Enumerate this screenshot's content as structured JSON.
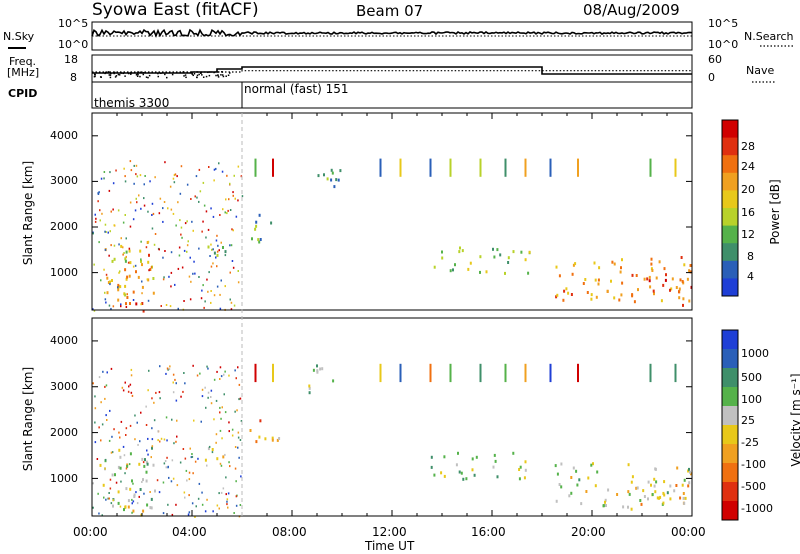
{
  "header": {
    "station": "Syowa East (fitACF)",
    "beam": "Beam 07",
    "date": "08/Aug/2009"
  },
  "noise_panel": {
    "left_label": "N.Sky",
    "right_label": "N.Search",
    "ticks_left": [
      "10^5",
      "10^0"
    ],
    "ticks_right": [
      "10^5",
      "10^0"
    ]
  },
  "freq_panel": {
    "left_label_line1": "Freq.",
    "left_label_line2": "[MHz]",
    "left_ticks": [
      "18",
      "8"
    ],
    "right_label": "Nave",
    "right_ticks": [
      "60",
      "0"
    ]
  },
  "cpid_panel": {
    "label": "CPID",
    "segments": [
      {
        "name": "themis 3300",
        "start_hour": 0
      },
      {
        "name": "normal (fast) 151",
        "start_hour": 6
      }
    ]
  },
  "power_panel": {
    "ylabel": "Slant Range [km]",
    "yticks": [
      "4000",
      "3000",
      "2000",
      "1000"
    ],
    "colorbar_label": "Power [dB]",
    "colorbar_ticks": [
      "28",
      "24",
      "20",
      "16",
      "12",
      "8",
      "4"
    ],
    "colors": [
      "#1f3fd6",
      "#2a5fb8",
      "#3f8f6a",
      "#55b24a",
      "#b8d22a",
      "#e8c81a",
      "#f0a020",
      "#f07010",
      "#e03010",
      "#d00000"
    ]
  },
  "velocity_panel": {
    "ylabel": "Slant Range [km]",
    "yticks": [
      "4000",
      "3000",
      "2000",
      "1000"
    ],
    "colorbar_label": "Velocity [m s⁻¹]",
    "colorbar_ticks": [
      "1000",
      "500",
      "100",
      "25",
      "-25",
      "-100",
      "-500",
      "-1000"
    ],
    "colors": [
      "#1f3fd6",
      "#2a5fb8",
      "#3f8f6a",
      "#55b24a",
      "#c0c0c0",
      "#e8c81a",
      "#f0a020",
      "#f07010",
      "#e03010",
      "#d00000"
    ]
  },
  "xaxis": {
    "label": "Time UT",
    "ticks": [
      "00:00",
      "04:00",
      "08:00",
      "12:00",
      "16:00",
      "20:00",
      "00:00"
    ]
  },
  "chart_data": {
    "type": "heatmap",
    "title": "Syowa East (fitACF)",
    "subtitle": "Beam 07",
    "x": [
      "00:00",
      "04:00",
      "08:00",
      "12:00",
      "16:00",
      "20:00",
      "00:00"
    ],
    "xlabel": "Time UT",
    "ylabel": "Slant Range [km]",
    "ylim": [
      180,
      4500
    ],
    "xlim_hours": [
      0,
      24
    ],
    "series": [
      {
        "name": "Power [dB]",
        "colorbar_range": [
          0,
          30
        ]
      },
      {
        "name": "Velocity [m s⁻¹]",
        "colorbar_range": [
          -1000,
          1000
        ]
      }
    ],
    "regions": [
      {
        "t0": 0.3,
        "t1": 1.5,
        "r0": 300,
        "r1": 1700,
        "power": 16,
        "velocity": 100
      },
      {
        "t0": 1.0,
        "t1": 2.5,
        "r0": 300,
        "r1": 1700,
        "power": 20,
        "velocity": 200
      },
      {
        "t0": 1.0,
        "t1": 2.5,
        "r0": 150,
        "r1": 450,
        "power": 24,
        "velocity": -200
      },
      {
        "t0": 4.5,
        "t1": 5.5,
        "r0": 1350,
        "r1": 1800,
        "power": 8,
        "velocity": -25
      },
      {
        "t0": 6.2,
        "t1": 7.5,
        "r0": 1700,
        "r1": 2300,
        "power": 8,
        "velocity": -300
      },
      {
        "t0": 8.5,
        "t1": 10.0,
        "r0": 2900,
        "r1": 3500,
        "power": 8,
        "velocity": 300
      },
      {
        "t0": 13.5,
        "t1": 17.5,
        "r0": 1000,
        "r1": 1600,
        "power": 12,
        "velocity": 150
      },
      {
        "t0": 18.5,
        "t1": 24.0,
        "r0": 400,
        "r1": 1400,
        "power": 20,
        "velocity": 80
      },
      {
        "t0": 21.5,
        "t1": 24.0,
        "r0": 300,
        "r1": 1000,
        "power": 24,
        "velocity": -200
      }
    ],
    "cpid": [
      {
        "name": "themis 3300",
        "start_hour": 0,
        "end_hour": 6
      },
      {
        "name": "normal (fast) 151",
        "start_hour": 6,
        "end_hour": 24
      }
    ],
    "frequency_mhz": [
      {
        "start_hour": 0,
        "end_hour": 4,
        "value": 10.5
      },
      {
        "start_hour": 4,
        "end_hour": 5,
        "value": 11.0
      },
      {
        "start_hour": 5,
        "end_hour": 6,
        "value": 12.5
      },
      {
        "start_hour": 6,
        "end_hour": 18,
        "value": 13.5
      },
      {
        "start_hour": 18,
        "end_hour": 24,
        "value": 10.0
      }
    ],
    "nave": [
      {
        "start_hour": 0,
        "end_hour": 6,
        "value": 18
      },
      {
        "start_hour": 6,
        "end_hour": 18,
        "value": 22
      },
      {
        "start_hour": 18,
        "end_hour": 24,
        "value": 22
      }
    ]
  }
}
